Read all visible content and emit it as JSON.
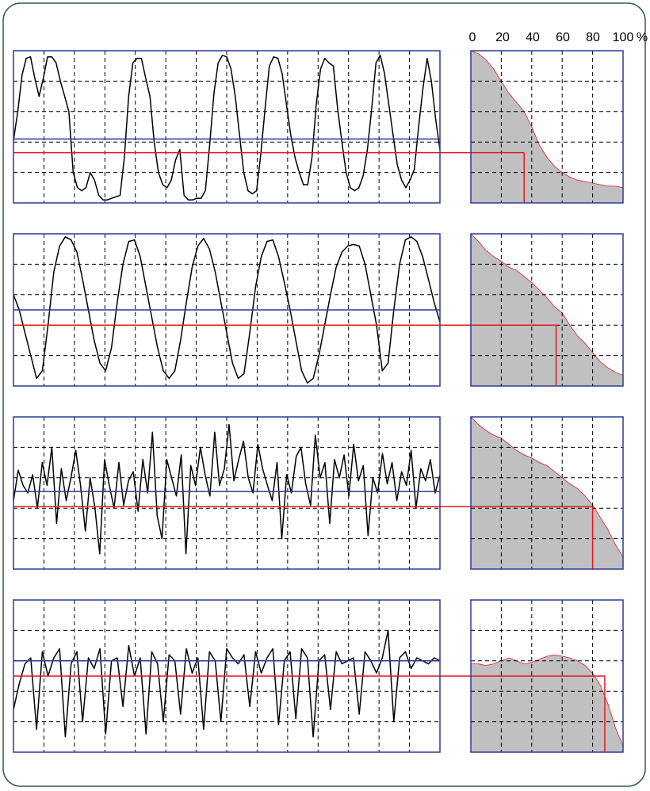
{
  "colors": {
    "frame": "#3a5a4f",
    "panel_border": "#2b3c96",
    "grid": "#000000",
    "trace": "#000000",
    "mean_line": "#2b3c96",
    "level_line": "#e0191f",
    "fill": "#c0c0c0"
  },
  "top_axis": {
    "ticks": [
      "0",
      "20",
      "40",
      "60",
      "80",
      "100"
    ],
    "unit": "%"
  },
  "chart_data": {
    "type": "line",
    "x_axis": {
      "ticks": [
        "0",
        "20",
        "40",
        "60",
        "80",
        "100"
      ],
      "unit": "%"
    },
    "grid": true,
    "rows": [
      {
        "signal": [
          0.41,
          0.6,
          0.84,
          0.95,
          0.96,
          0.82,
          0.7,
          0.82,
          0.96,
          0.96,
          0.92,
          0.8,
          0.7,
          0.6,
          0.2,
          0.1,
          0.08,
          0.1,
          0.2,
          0.15,
          0.05,
          0.02,
          0.02,
          0.03,
          0.04,
          0.05,
          0.3,
          0.7,
          0.92,
          0.95,
          0.95,
          0.82,
          0.7,
          0.4,
          0.2,
          0.12,
          0.1,
          0.15,
          0.28,
          0.35,
          0.05,
          0.02,
          0.02,
          0.03,
          0.03,
          0.08,
          0.38,
          0.72,
          0.92,
          0.97,
          0.96,
          0.88,
          0.7,
          0.45,
          0.2,
          0.08,
          0.06,
          0.08,
          0.32,
          0.62,
          0.9,
          0.96,
          0.95,
          0.85,
          0.65,
          0.45,
          0.3,
          0.2,
          0.12,
          0.12,
          0.3,
          0.65,
          0.88,
          0.95,
          0.92,
          0.9,
          0.62,
          0.4,
          0.2,
          0.1,
          0.08,
          0.1,
          0.18,
          0.35,
          0.62,
          0.92,
          0.97,
          0.85,
          0.65,
          0.45,
          0.25,
          0.15,
          0.1,
          0.15,
          0.22,
          0.5,
          0.75,
          0.95,
          0.8,
          0.55,
          0.35
        ],
        "mean_level": 0.42,
        "threshold_level": 0.33,
        "exceedance": [
          1.0,
          0.98,
          0.94,
          0.88,
          0.8,
          0.72,
          0.66,
          0.6,
          0.5,
          0.38,
          0.3,
          0.24,
          0.2,
          0.17,
          0.15,
          0.14,
          0.13,
          0.12,
          0.11,
          0.11,
          0.1
        ],
        "threshold_percent": 35
      },
      {
        "signal": [
          0.6,
          0.5,
          0.35,
          0.2,
          0.05,
          0.1,
          0.4,
          0.75,
          0.92,
          0.98,
          0.96,
          0.88,
          0.7,
          0.5,
          0.3,
          0.15,
          0.1,
          0.25,
          0.55,
          0.8,
          0.95,
          0.96,
          0.85,
          0.65,
          0.45,
          0.25,
          0.1,
          0.05,
          0.1,
          0.3,
          0.55,
          0.78,
          0.92,
          0.97,
          0.9,
          0.75,
          0.55,
          0.35,
          0.15,
          0.05,
          0.08,
          0.35,
          0.65,
          0.85,
          0.95,
          0.96,
          0.85,
          0.68,
          0.5,
          0.3,
          0.1,
          0.02,
          0.05,
          0.2,
          0.4,
          0.6,
          0.78,
          0.88,
          0.92,
          0.93,
          0.92,
          0.8,
          0.6,
          0.4,
          0.1,
          0.15,
          0.5,
          0.8,
          0.96,
          0.98,
          0.95,
          0.85,
          0.7,
          0.55,
          0.42
        ],
        "mean_level": 0.5,
        "threshold_level": 0.4,
        "exceedance": [
          1.0,
          0.95,
          0.89,
          0.85,
          0.82,
          0.78,
          0.76,
          0.72,
          0.68,
          0.63,
          0.58,
          0.52,
          0.48,
          0.4,
          0.33,
          0.28,
          0.22,
          0.16,
          0.12,
          0.09,
          0.07
        ],
        "threshold_percent": 56
      },
      {
        "signal": [
          0.45,
          0.65,
          0.55,
          0.5,
          0.62,
          0.4,
          0.7,
          0.55,
          0.8,
          0.3,
          0.66,
          0.45,
          0.6,
          0.78,
          0.55,
          0.25,
          0.6,
          0.4,
          0.1,
          0.72,
          0.55,
          0.4,
          0.7,
          0.42,
          0.58,
          0.64,
          0.38,
          0.72,
          0.5,
          0.9,
          0.35,
          0.2,
          0.72,
          0.6,
          0.48,
          0.75,
          0.1,
          0.68,
          0.55,
          0.8,
          0.62,
          0.48,
          0.9,
          0.55,
          0.66,
          0.95,
          0.58,
          0.72,
          0.84,
          0.6,
          0.5,
          0.82,
          0.66,
          0.55,
          0.45,
          0.7,
          0.2,
          0.62,
          0.5,
          0.74,
          0.8,
          0.56,
          0.42,
          0.88,
          0.6,
          0.7,
          0.3,
          0.72,
          0.6,
          0.75,
          0.48,
          0.82,
          0.58,
          0.68,
          0.22,
          0.6,
          0.5,
          0.76,
          0.56,
          0.7,
          0.45,
          0.64,
          0.55,
          0.78,
          0.4,
          0.66,
          0.58,
          0.72,
          0.5,
          0.62
        ],
        "mean_level": 0.51,
        "threshold_level": 0.41,
        "exceedance": [
          1.0,
          0.95,
          0.91,
          0.88,
          0.86,
          0.82,
          0.78,
          0.75,
          0.73,
          0.7,
          0.68,
          0.64,
          0.6,
          0.56,
          0.53,
          0.48,
          0.42,
          0.34,
          0.26,
          0.16,
          0.08
        ],
        "threshold_percent": 80
      },
      {
        "signal": [
          0.28,
          0.45,
          0.58,
          0.62,
          0.15,
          0.66,
          0.5,
          0.62,
          0.68,
          0.1,
          0.58,
          0.66,
          0.2,
          0.62,
          0.55,
          0.68,
          0.12,
          0.6,
          0.62,
          0.3,
          0.7,
          0.5,
          0.62,
          0.12,
          0.66,
          0.58,
          0.2,
          0.64,
          0.6,
          0.25,
          0.68,
          0.52,
          0.62,
          0.15,
          0.66,
          0.6,
          0.2,
          0.68,
          0.62,
          0.58,
          0.64,
          0.3,
          0.66,
          0.52,
          0.62,
          0.68,
          0.18,
          0.6,
          0.66,
          0.22,
          0.68,
          0.62,
          0.1,
          0.6,
          0.64,
          0.28,
          0.66,
          0.58,
          0.6,
          0.62,
          0.25,
          0.66,
          0.6,
          0.52,
          0.62,
          0.8,
          0.2,
          0.62,
          0.66,
          0.55,
          0.62,
          0.6,
          0.58,
          0.62,
          0.6
        ],
        "mean_level": 0.6,
        "threshold_level": 0.5,
        "exceedance": [
          0.58,
          0.58,
          0.57,
          0.58,
          0.6,
          0.62,
          0.6,
          0.58,
          0.59,
          0.61,
          0.63,
          0.64,
          0.63,
          0.62,
          0.6,
          0.57,
          0.52,
          0.44,
          0.32,
          0.16,
          0.04
        ],
        "threshold_percent": 88
      }
    ]
  }
}
